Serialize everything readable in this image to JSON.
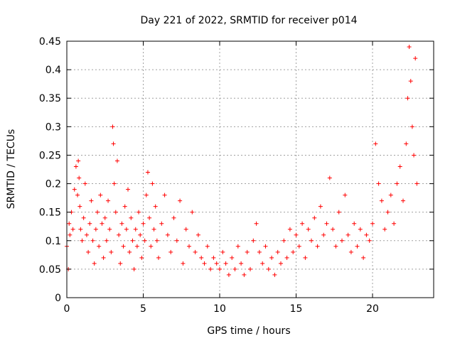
{
  "chart_data": {
    "type": "scatter",
    "title": "Day 221 of 2022, SRMTID for receiver p014",
    "xlabel": "GPS time / hours",
    "ylabel": "SRMTID / TECUs",
    "xlim": [
      0,
      24
    ],
    "ylim": [
      0,
      0.45
    ],
    "xticks": [
      0,
      5,
      10,
      15,
      20
    ],
    "xtick_labels": [
      "0",
      "5",
      "10",
      "15",
      "20"
    ],
    "yticks": [
      0,
      0.05,
      0.1,
      0.15,
      0.2,
      0.25,
      0.3,
      0.35,
      0.4,
      0.45
    ],
    "ytick_labels": [
      "0",
      "0.05",
      "0.1",
      "0.15",
      "0.2",
      "0.25",
      "0.3",
      "0.35",
      "0.4",
      "0.45"
    ],
    "grid": true,
    "marker": "+",
    "series": [
      {
        "name": "SRMTID",
        "color": "#ff0000",
        "x": [
          0.0,
          0.1,
          0.15,
          0.2,
          0.3,
          0.4,
          0.5,
          0.6,
          0.7,
          0.75,
          0.8,
          0.85,
          0.9,
          1.0,
          1.1,
          1.2,
          1.3,
          1.4,
          1.5,
          1.6,
          1.7,
          1.8,
          1.9,
          2.0,
          2.1,
          2.2,
          2.3,
          2.4,
          2.5,
          2.6,
          2.7,
          2.8,
          2.9,
          3.0,
          3.05,
          3.1,
          3.2,
          3.3,
          3.4,
          3.5,
          3.6,
          3.7,
          3.8,
          3.9,
          4.0,
          4.1,
          4.2,
          4.3,
          4.4,
          4.5,
          4.6,
          4.7,
          4.8,
          4.9,
          5.0,
          5.1,
          5.2,
          5.3,
          5.4,
          5.5,
          5.6,
          5.7,
          5.8,
          5.9,
          6.0,
          6.2,
          6.4,
          6.6,
          6.8,
          7.0,
          7.2,
          7.4,
          7.6,
          7.8,
          8.0,
          8.2,
          8.4,
          8.6,
          8.8,
          9.0,
          9.2,
          9.4,
          9.6,
          9.8,
          10.0,
          10.2,
          10.4,
          10.6,
          10.8,
          11.0,
          11.2,
          11.4,
          11.6,
          11.8,
          12.0,
          12.2,
          12.4,
          12.6,
          12.8,
          13.0,
          13.2,
          13.4,
          13.6,
          13.8,
          14.0,
          14.2,
          14.4,
          14.6,
          14.8,
          15.0,
          15.2,
          15.4,
          15.6,
          15.8,
          16.0,
          16.2,
          16.4,
          16.6,
          16.8,
          17.0,
          17.2,
          17.4,
          17.6,
          17.8,
          18.0,
          18.2,
          18.4,
          18.6,
          18.8,
          19.0,
          19.2,
          19.4,
          19.6,
          19.8,
          20.0,
          20.2,
          20.4,
          20.6,
          20.8,
          21.0,
          21.2,
          21.4,
          21.6,
          21.8,
          22.0,
          22.2,
          22.3,
          22.4,
          22.5,
          22.6,
          22.7,
          22.8,
          22.9
        ],
        "y": [
          0.09,
          0.05,
          0.13,
          0.11,
          0.15,
          0.12,
          0.19,
          0.23,
          0.18,
          0.24,
          0.21,
          0.16,
          0.12,
          0.1,
          0.14,
          0.2,
          0.11,
          0.08,
          0.13,
          0.17,
          0.1,
          0.06,
          0.12,
          0.15,
          0.09,
          0.18,
          0.13,
          0.07,
          0.14,
          0.1,
          0.17,
          0.12,
          0.08,
          0.3,
          0.27,
          0.2,
          0.15,
          0.24,
          0.11,
          0.06,
          0.13,
          0.09,
          0.16,
          0.12,
          0.19,
          0.08,
          0.14,
          0.1,
          0.05,
          0.12,
          0.09,
          0.15,
          0.11,
          0.07,
          0.13,
          0.1,
          0.18,
          0.22,
          0.14,
          0.09,
          0.2,
          0.12,
          0.16,
          0.1,
          0.07,
          0.13,
          0.18,
          0.11,
          0.08,
          0.14,
          0.1,
          0.17,
          0.06,
          0.12,
          0.09,
          0.15,
          0.08,
          0.11,
          0.07,
          0.06,
          0.09,
          0.05,
          0.07,
          0.06,
          0.05,
          0.08,
          0.06,
          0.04,
          0.07,
          0.05,
          0.09,
          0.06,
          0.04,
          0.08,
          0.05,
          0.1,
          0.13,
          0.08,
          0.06,
          0.09,
          0.05,
          0.07,
          0.04,
          0.08,
          0.06,
          0.1,
          0.07,
          0.12,
          0.08,
          0.11,
          0.09,
          0.13,
          0.07,
          0.12,
          0.1,
          0.14,
          0.09,
          0.16,
          0.11,
          0.13,
          0.21,
          0.12,
          0.09,
          0.15,
          0.1,
          0.18,
          0.11,
          0.08,
          0.13,
          0.09,
          0.12,
          0.07,
          0.11,
          0.1,
          0.13,
          0.27,
          0.2,
          0.17,
          0.12,
          0.15,
          0.18,
          0.13,
          0.2,
          0.23,
          0.17,
          0.27,
          0.35,
          0.44,
          0.38,
          0.3,
          0.25,
          0.42,
          0.2
        ]
      }
    ]
  }
}
